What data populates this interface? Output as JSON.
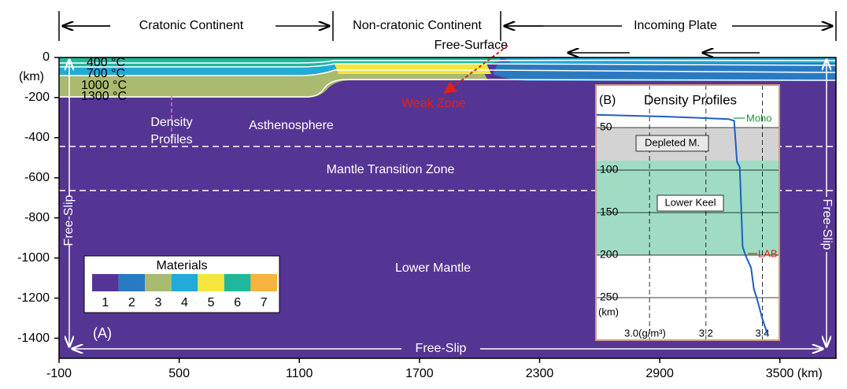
{
  "header": {
    "regions": [
      "Cratonic Continent",
      "Non-cratonic Continent",
      "Incoming Plate"
    ],
    "free_surface": "Free-Surface",
    "weak_zone": "Weak Zone"
  },
  "axes": {
    "xlim": [
      -100,
      3780
    ],
    "ylim": [
      -1500,
      0
    ],
    "xticks": [
      -100,
      500,
      1100,
      1700,
      2300,
      2900,
      {
        "value": 3500,
        "label": "3500 (km)"
      }
    ],
    "yticks": [
      0,
      -200,
      -400,
      -600,
      -800,
      -1000,
      -1200,
      -1400
    ],
    "y_unit": "(km)"
  },
  "isotherms": [
    "400 °C",
    "700 °C",
    "1000 °C",
    "1300 °C"
  ],
  "labels": {
    "density_profiles": [
      "Density",
      "Profiles"
    ],
    "asthenosphere": "Asthenosphere",
    "transition_zone": "Mantle Transition Zone",
    "lower_mantle": "Lower Mantle",
    "free_slip_left": "Free-Slip",
    "free_slip_right": "Free-Slip",
    "free_slip_bottom": "Free-Slip",
    "panel_a": "(A)"
  },
  "legend": {
    "title": "Materials",
    "items": [
      {
        "label": "1",
        "color": "#553594"
      },
      {
        "label": "2",
        "color": "#2a7ac2"
      },
      {
        "label": "3",
        "color": "#a8bb6e"
      },
      {
        "label": "4",
        "color": "#22aad8"
      },
      {
        "label": "5",
        "color": "#f4e63c"
      },
      {
        "label": "6",
        "color": "#20b89c"
      },
      {
        "label": "7",
        "color": "#f6b33e"
      }
    ]
  },
  "inset": {
    "panel": "(B)",
    "title": "Density Profiles",
    "moho": "Moho",
    "depleted": "Depleted M.",
    "keel": "Lower Keel",
    "lab": "LAB",
    "xlim": [
      2.81,
      3.46
    ],
    "ylim": [
      300,
      0
    ],
    "yticks": [
      50,
      100,
      150,
      200,
      250
    ],
    "y_unit": "(km)",
    "xticks": [
      {
        "value": 3.0,
        "label": "3.0(g/m³)"
      },
      3.2,
      3.4
    ],
    "profile": {
      "density": [
        2.81,
        3.05,
        3.28,
        3.3,
        3.31,
        3.32,
        3.33,
        3.34,
        3.36,
        3.37,
        3.38,
        3.4,
        3.42
      ],
      "depth": [
        35,
        37,
        40,
        42,
        90,
        97,
        190,
        200,
        215,
        240,
        250,
        275,
        295
      ]
    }
  }
}
